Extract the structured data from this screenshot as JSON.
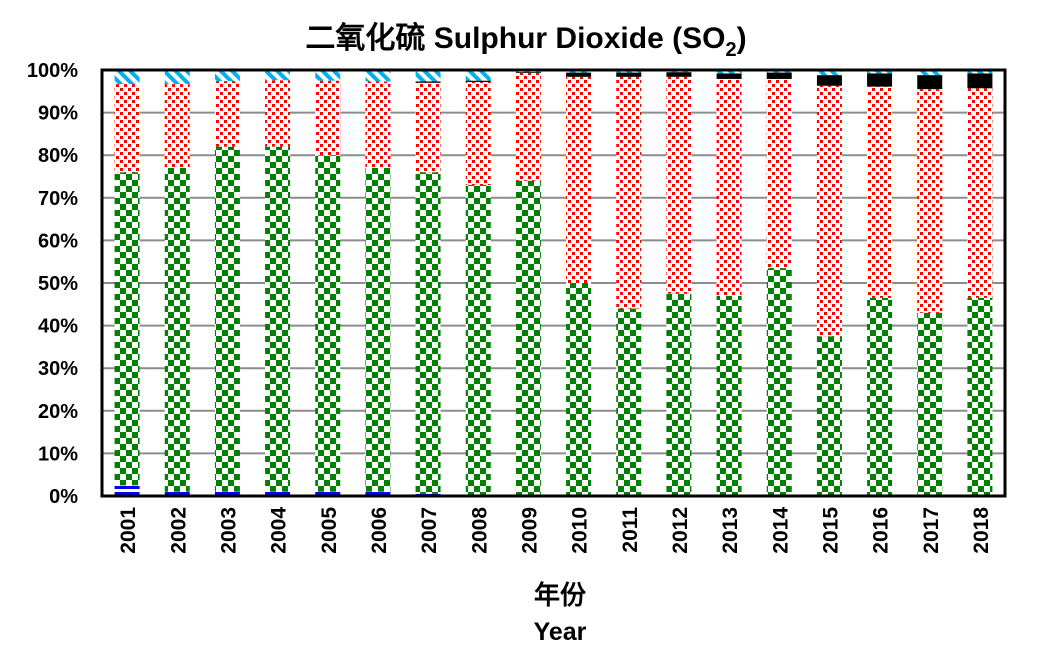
{
  "chart_data": {
    "type": "bar",
    "stacked": true,
    "title": "二氧化硫 Sulphur Dioxide (SO",
    "title_subscript": "2",
    "title_close": ")",
    "xlabel": "年份",
    "xlabel_en": "Year",
    "ylabel": "",
    "ylim": [
      0,
      100
    ],
    "yticks": [
      "0%",
      "10%",
      "20%",
      "30%",
      "40%",
      "50%",
      "60%",
      "70%",
      "80%",
      "90%",
      "100%"
    ],
    "grid": true,
    "categories": [
      "2001",
      "2002",
      "2003",
      "2004",
      "2005",
      "2006",
      "2007",
      "2008",
      "2009",
      "2010",
      "2011",
      "2012",
      "2013",
      "2014",
      "2015",
      "2016",
      "2017",
      "2018"
    ],
    "series": [
      {
        "color": "#0000ff",
        "pattern": "horizontal-lines",
        "values": [
          2.5,
          1,
          1,
          1,
          1,
          1,
          0.5,
          0,
          0,
          0,
          0,
          0,
          0,
          0,
          0,
          0,
          0,
          0
        ]
      },
      {
        "color": "#008000",
        "pattern": "checkerboard",
        "values": [
          73.5,
          76,
          81,
          81,
          79,
          76,
          75.5,
          73,
          74,
          50,
          44,
          47.5,
          47,
          53.5,
          37.5,
          46.5,
          43,
          46.5
        ]
      },
      {
        "color": "#ff0000",
        "pattern": "dots",
        "values": [
          20.7,
          19.7,
          15.4,
          15.6,
          17.5,
          20.3,
          21,
          24.2,
          25.3,
          48.4,
          54.4,
          50.9,
          50.9,
          44.4,
          58.8,
          49.6,
          52.5,
          49.2
        ]
      },
      {
        "color": "#000000",
        "pattern": "solid",
        "values": [
          0,
          0,
          0,
          0,
          0,
          0,
          0.3,
          0.3,
          0.2,
          1,
          1,
          1.1,
          1.3,
          1.5,
          2.5,
          3.1,
          3.3,
          3.5
        ]
      },
      {
        "color": "#00b0f0",
        "pattern": "diagonal-stripes",
        "values": [
          3.3,
          3.3,
          2.6,
          2.4,
          2.5,
          2.7,
          2.7,
          2.5,
          0.5,
          0.6,
          0.6,
          0.5,
          0.8,
          0.6,
          1.2,
          0.8,
          1.2,
          0.8
        ]
      }
    ]
  }
}
